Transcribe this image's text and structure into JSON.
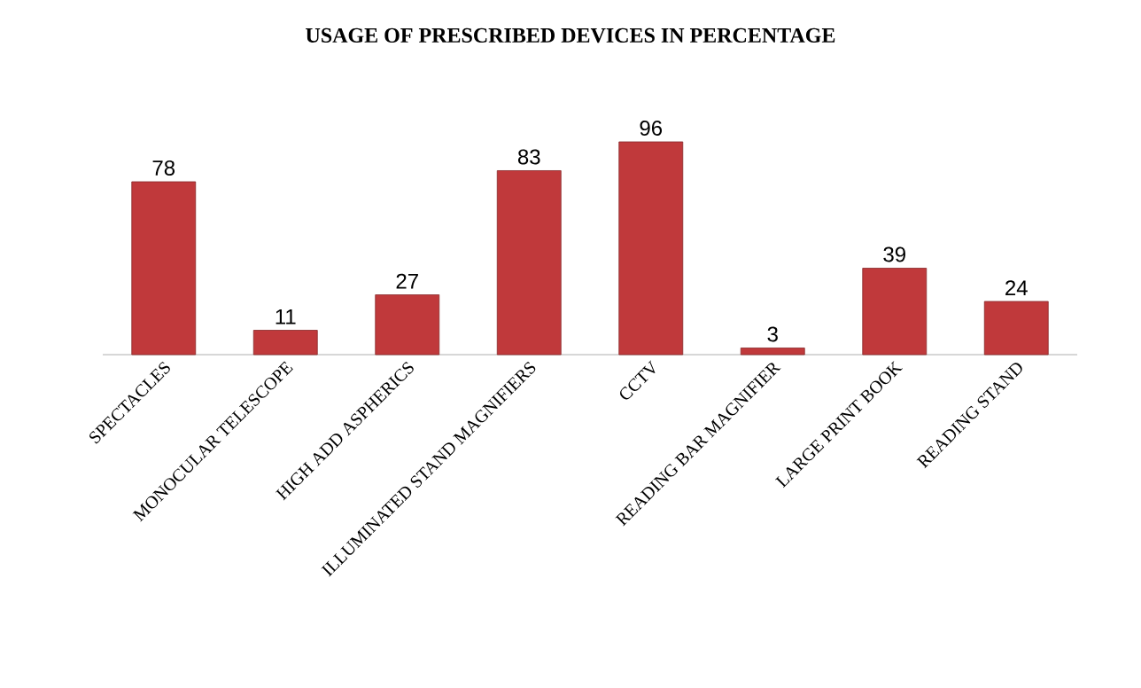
{
  "chart_data": {
    "type": "bar",
    "title": "USAGE OF PRESCRIBED DEVICES IN PERCENTAGE",
    "categories": [
      "SPECTACLES",
      "MONOCULAR TELESCOPE",
      "HIGH ADD ASPHERICS",
      "ILLUMINATED STAND MAGNIFIERS",
      "CCTV",
      "READING BAR MAGNIFIER",
      "LARGE PRINT BOOK",
      "READING STAND"
    ],
    "values": [
      78,
      11,
      27,
      83,
      96,
      3,
      39,
      24
    ],
    "color": "#c0393b",
    "data_labels": true
  }
}
